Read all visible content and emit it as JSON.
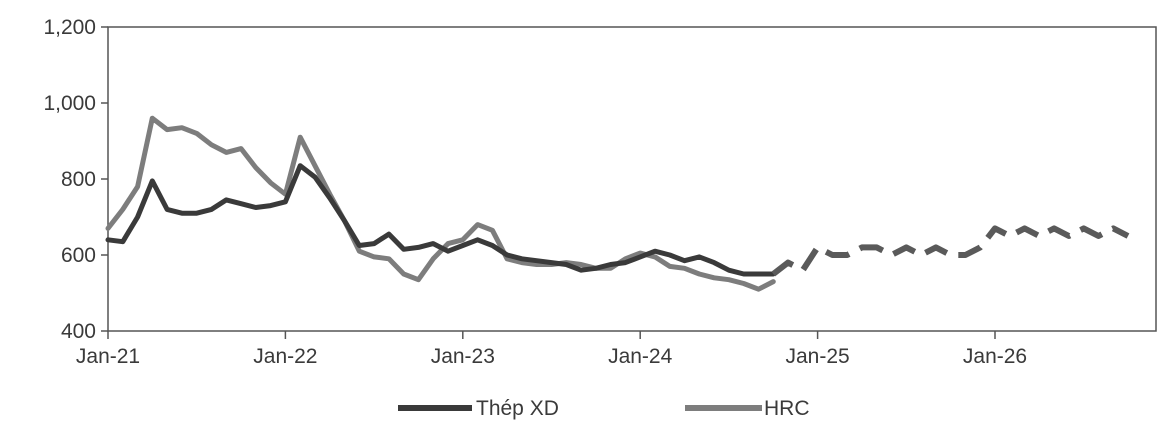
{
  "chart_data": {
    "type": "line",
    "title": "",
    "xlabel": "",
    "ylabel": "",
    "ylim": [
      400,
      1200
    ],
    "xlim": [
      "2021-01",
      "2026-10"
    ],
    "grid": false,
    "legend_position": "bottom-center",
    "y_ticks": [
      400,
      600,
      800,
      1000,
      1200
    ],
    "y_tick_labels": [
      "400",
      "600",
      "800",
      "1,000",
      "1,200"
    ],
    "x_ticks": [
      "2021-01",
      "2022-01",
      "2023-01",
      "2024-01",
      "2025-01",
      "2026-01"
    ],
    "x_tick_labels": [
      "Jan-21",
      "Jan-22",
      "Jan-23",
      "Jan-24",
      "Jan-25",
      "Jan-26"
    ],
    "colors": {
      "thep_xd": "#3a3a3a",
      "hrc": "#7d7d7d",
      "forecast": "#5a5a5a"
    },
    "series": [
      {
        "name": "Thép XD",
        "color": "#3a3a3a",
        "x": [
          "2021-01",
          "2021-02",
          "2021-03",
          "2021-04",
          "2021-05",
          "2021-06",
          "2021-07",
          "2021-08",
          "2021-09",
          "2021-10",
          "2021-11",
          "2021-12",
          "2022-01",
          "2022-02",
          "2022-03",
          "2022-04",
          "2022-05",
          "2022-06",
          "2022-07",
          "2022-08",
          "2022-09",
          "2022-10",
          "2022-11",
          "2022-12",
          "2023-01",
          "2023-02",
          "2023-03",
          "2023-04",
          "2023-05",
          "2023-06",
          "2023-07",
          "2023-08",
          "2023-09",
          "2023-10",
          "2023-11",
          "2023-12",
          "2024-01",
          "2024-02",
          "2024-03",
          "2024-04",
          "2024-05",
          "2024-06",
          "2024-07",
          "2024-08",
          "2024-09",
          "2024-10"
        ],
        "values": [
          640,
          635,
          700,
          795,
          720,
          710,
          710,
          720,
          745,
          735,
          725,
          730,
          740,
          835,
          805,
          750,
          690,
          625,
          630,
          655,
          615,
          620,
          630,
          610,
          625,
          640,
          625,
          600,
          590,
          585,
          580,
          575,
          560,
          565,
          575,
          580,
          595,
          610,
          600,
          585,
          595,
          580,
          560,
          550,
          550,
          550
        ]
      },
      {
        "name": "HRC",
        "color": "#7d7d7d",
        "x": [
          "2021-01",
          "2021-02",
          "2021-03",
          "2021-04",
          "2021-05",
          "2021-06",
          "2021-07",
          "2021-08",
          "2021-09",
          "2021-10",
          "2021-11",
          "2021-12",
          "2022-01",
          "2022-02",
          "2022-03",
          "2022-04",
          "2022-05",
          "2022-06",
          "2022-07",
          "2022-08",
          "2022-09",
          "2022-10",
          "2022-11",
          "2022-12",
          "2023-01",
          "2023-02",
          "2023-03",
          "2023-04",
          "2023-05",
          "2023-06",
          "2023-07",
          "2023-08",
          "2023-09",
          "2023-10",
          "2023-11",
          "2023-12",
          "2024-01",
          "2024-02",
          "2024-03",
          "2024-04",
          "2024-05",
          "2024-06",
          "2024-07",
          "2024-08",
          "2024-09",
          "2024-10"
        ],
        "values": [
          670,
          720,
          780,
          960,
          930,
          935,
          920,
          890,
          870,
          880,
          830,
          790,
          760,
          910,
          835,
          760,
          690,
          610,
          595,
          590,
          550,
          535,
          590,
          630,
          640,
          680,
          665,
          590,
          580,
          575,
          575,
          580,
          575,
          565,
          565,
          590,
          605,
          595,
          570,
          565,
          550,
          540,
          535,
          525,
          510,
          530
        ]
      },
      {
        "name": "",
        "style": "dashed",
        "color": "#5a5a5a",
        "x": [
          "2024-10",
          "2024-11",
          "2024-12",
          "2025-01",
          "2025-02",
          "2025-03",
          "2025-04",
          "2025-05",
          "2025-06",
          "2025-07",
          "2025-08",
          "2025-09",
          "2025-10",
          "2025-11",
          "2025-12",
          "2026-01",
          "2026-02",
          "2026-03",
          "2026-04",
          "2026-05",
          "2026-06",
          "2026-07",
          "2026-08",
          "2026-09",
          "2026-10"
        ],
        "values": [
          550,
          580,
          560,
          620,
          600,
          600,
          620,
          620,
          600,
          620,
          600,
          620,
          600,
          600,
          620,
          670,
          650,
          670,
          650,
          670,
          650,
          670,
          650,
          670,
          650
        ]
      }
    ]
  },
  "legend": {
    "items": [
      {
        "label": "Thép XD",
        "color": "#3a3a3a"
      },
      {
        "label": "HRC",
        "color": "#7d7d7d"
      }
    ]
  }
}
